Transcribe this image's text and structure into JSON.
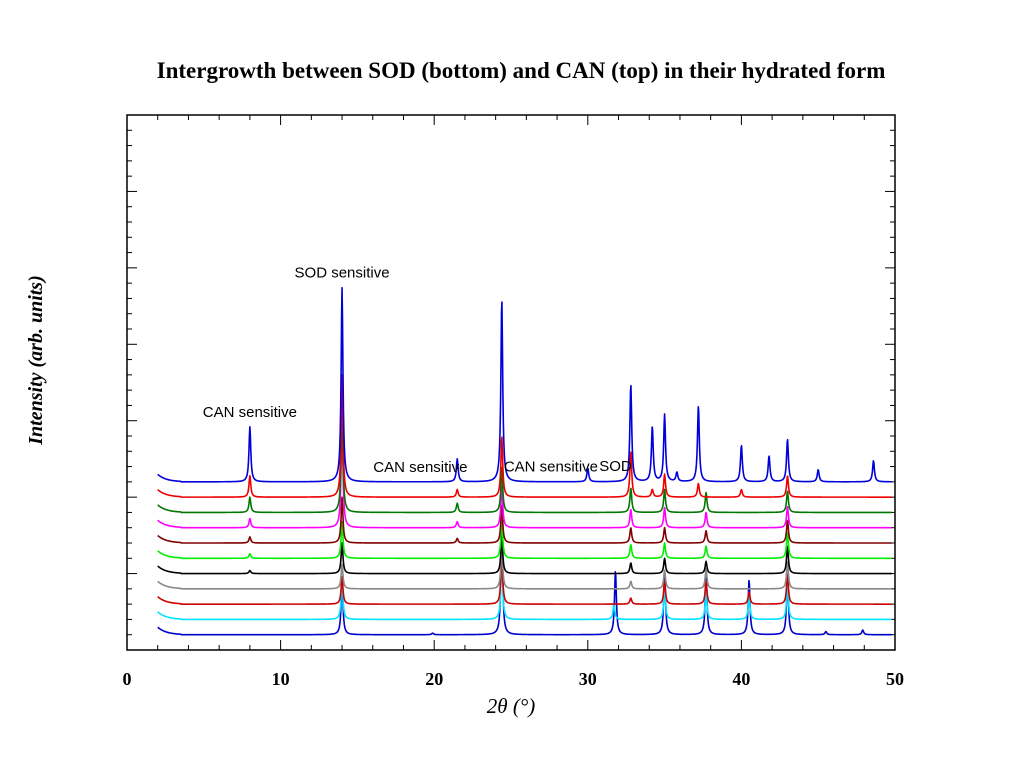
{
  "chart_data": {
    "type": "line",
    "title": "Intergrowth between SOD (bottom) and CAN (top) in their hydrated form",
    "xlabel": "2θ (°)",
    "ylabel": "Intensity (arb. units)",
    "xlim": [
      0,
      50
    ],
    "xticks": [
      0,
      10,
      20,
      30,
      40,
      50
    ],
    "xtick_labels": [
      "0",
      "10",
      "20",
      "30",
      "40",
      "50"
    ],
    "ylim": [
      0,
      35
    ],
    "grid": false,
    "legend": "none",
    "series_count": 11,
    "series": [
      {
        "color": "#0000cc",
        "offset": 1.0,
        "peaks": [
          [
            14.0,
            3.7
          ],
          [
            19.9,
            0.1
          ],
          [
            24.4,
            7.0
          ],
          [
            31.8,
            4.2
          ],
          [
            35.0,
            4.2
          ],
          [
            37.7,
            4.0
          ],
          [
            40.5,
            3.6
          ],
          [
            43.0,
            4.0
          ],
          [
            45.5,
            0.2
          ],
          [
            47.9,
            0.3
          ]
        ]
      },
      {
        "color": "#00e5ff",
        "offset": 2.0,
        "peaks": [
          [
            14.0,
            2.6
          ],
          [
            24.4,
            4.0
          ],
          [
            31.7,
            1.0
          ],
          [
            35.0,
            2.0
          ],
          [
            37.7,
            1.8
          ],
          [
            40.5,
            1.5
          ],
          [
            43.0,
            2.3
          ]
        ]
      },
      {
        "color": "#cc0000",
        "offset": 3.0,
        "peaks": [
          [
            14.0,
            1.8
          ],
          [
            24.4,
            3.2
          ],
          [
            32.8,
            0.4
          ],
          [
            35.0,
            1.5
          ],
          [
            37.7,
            1.5
          ],
          [
            40.5,
            0.8
          ],
          [
            43.0,
            2.0
          ]
        ]
      },
      {
        "color": "#888888",
        "offset": 4.0,
        "peaks": [
          [
            14.0,
            1.6
          ],
          [
            24.4,
            2.8
          ],
          [
            32.8,
            0.5
          ],
          [
            35.0,
            1.2
          ],
          [
            37.7,
            1.3
          ],
          [
            43.0,
            1.8
          ]
        ]
      },
      {
        "color": "#000000",
        "offset": 5.0,
        "peaks": [
          [
            8.0,
            0.2
          ],
          [
            14.0,
            2.0
          ],
          [
            24.4,
            2.5
          ],
          [
            32.8,
            0.7
          ],
          [
            35.0,
            1.0
          ],
          [
            37.7,
            0.8
          ],
          [
            43.0,
            1.8
          ]
        ]
      },
      {
        "color": "#00ee00",
        "offset": 6.0,
        "peaks": [
          [
            8.0,
            0.3
          ],
          [
            14.0,
            2.4
          ],
          [
            24.4,
            2.5
          ],
          [
            32.8,
            0.9
          ],
          [
            35.0,
            1.0
          ],
          [
            37.7,
            0.8
          ],
          [
            43.0,
            1.7
          ]
        ]
      },
      {
        "color": "#800000",
        "offset": 7.0,
        "peaks": [
          [
            8.0,
            0.4
          ],
          [
            14.0,
            3.0
          ],
          [
            21.5,
            0.3
          ],
          [
            24.4,
            2.5
          ],
          [
            32.8,
            1.0
          ],
          [
            35.0,
            1.0
          ],
          [
            37.7,
            0.8
          ],
          [
            43.0,
            1.5
          ]
        ]
      },
      {
        "color": "#ff00ff",
        "offset": 8.0,
        "peaks": [
          [
            8.0,
            0.6
          ],
          [
            14.0,
            7.0
          ],
          [
            21.5,
            0.4
          ],
          [
            24.4,
            2.8
          ],
          [
            32.8,
            1.2
          ],
          [
            35.0,
            1.3
          ],
          [
            37.7,
            1.0
          ],
          [
            43.0,
            1.4
          ]
        ]
      },
      {
        "color": "#007700",
        "offset": 9.0,
        "peaks": [
          [
            8.0,
            1.0
          ],
          [
            14.0,
            7.0
          ],
          [
            21.5,
            0.6
          ],
          [
            24.4,
            3.0
          ],
          [
            32.8,
            1.6
          ],
          [
            35.0,
            1.5
          ],
          [
            37.7,
            1.3
          ],
          [
            43.0,
            1.4
          ]
        ]
      },
      {
        "color": "#ee0000",
        "offset": 10.0,
        "peaks": [
          [
            8.0,
            1.4
          ],
          [
            14.0,
            8.0
          ],
          [
            21.5,
            0.5
          ],
          [
            24.4,
            4.0
          ],
          [
            32.8,
            3.0
          ],
          [
            34.2,
            0.5
          ],
          [
            35.0,
            1.5
          ],
          [
            37.2,
            0.9
          ],
          [
            40.0,
            0.5
          ],
          [
            43.0,
            1.4
          ]
        ]
      },
      {
        "color": "#0000dd",
        "offset": 11.0,
        "peaks": [
          [
            8.0,
            3.6
          ],
          [
            14.0,
            12.7
          ],
          [
            21.5,
            1.5
          ],
          [
            24.4,
            12.0
          ],
          [
            30.0,
            0.9
          ],
          [
            32.8,
            6.4
          ],
          [
            34.2,
            3.6
          ],
          [
            35.0,
            4.4
          ],
          [
            35.8,
            0.6
          ],
          [
            37.2,
            5.0
          ],
          [
            40.0,
            2.4
          ],
          [
            41.8,
            1.7
          ],
          [
            43.0,
            2.8
          ],
          [
            45.0,
            0.8
          ],
          [
            48.6,
            1.4
          ]
        ]
      }
    ],
    "annotations": [
      {
        "text": "CAN sensitive",
        "x": 8.0
      },
      {
        "text": "SOD sensitive",
        "x": 14.0
      },
      {
        "text": "CAN sensitive",
        "x": 19.1
      },
      {
        "text": "CAN sensitive",
        "x": 27.6
      },
      {
        "text": "SOD",
        "x": 31.8
      }
    ]
  }
}
